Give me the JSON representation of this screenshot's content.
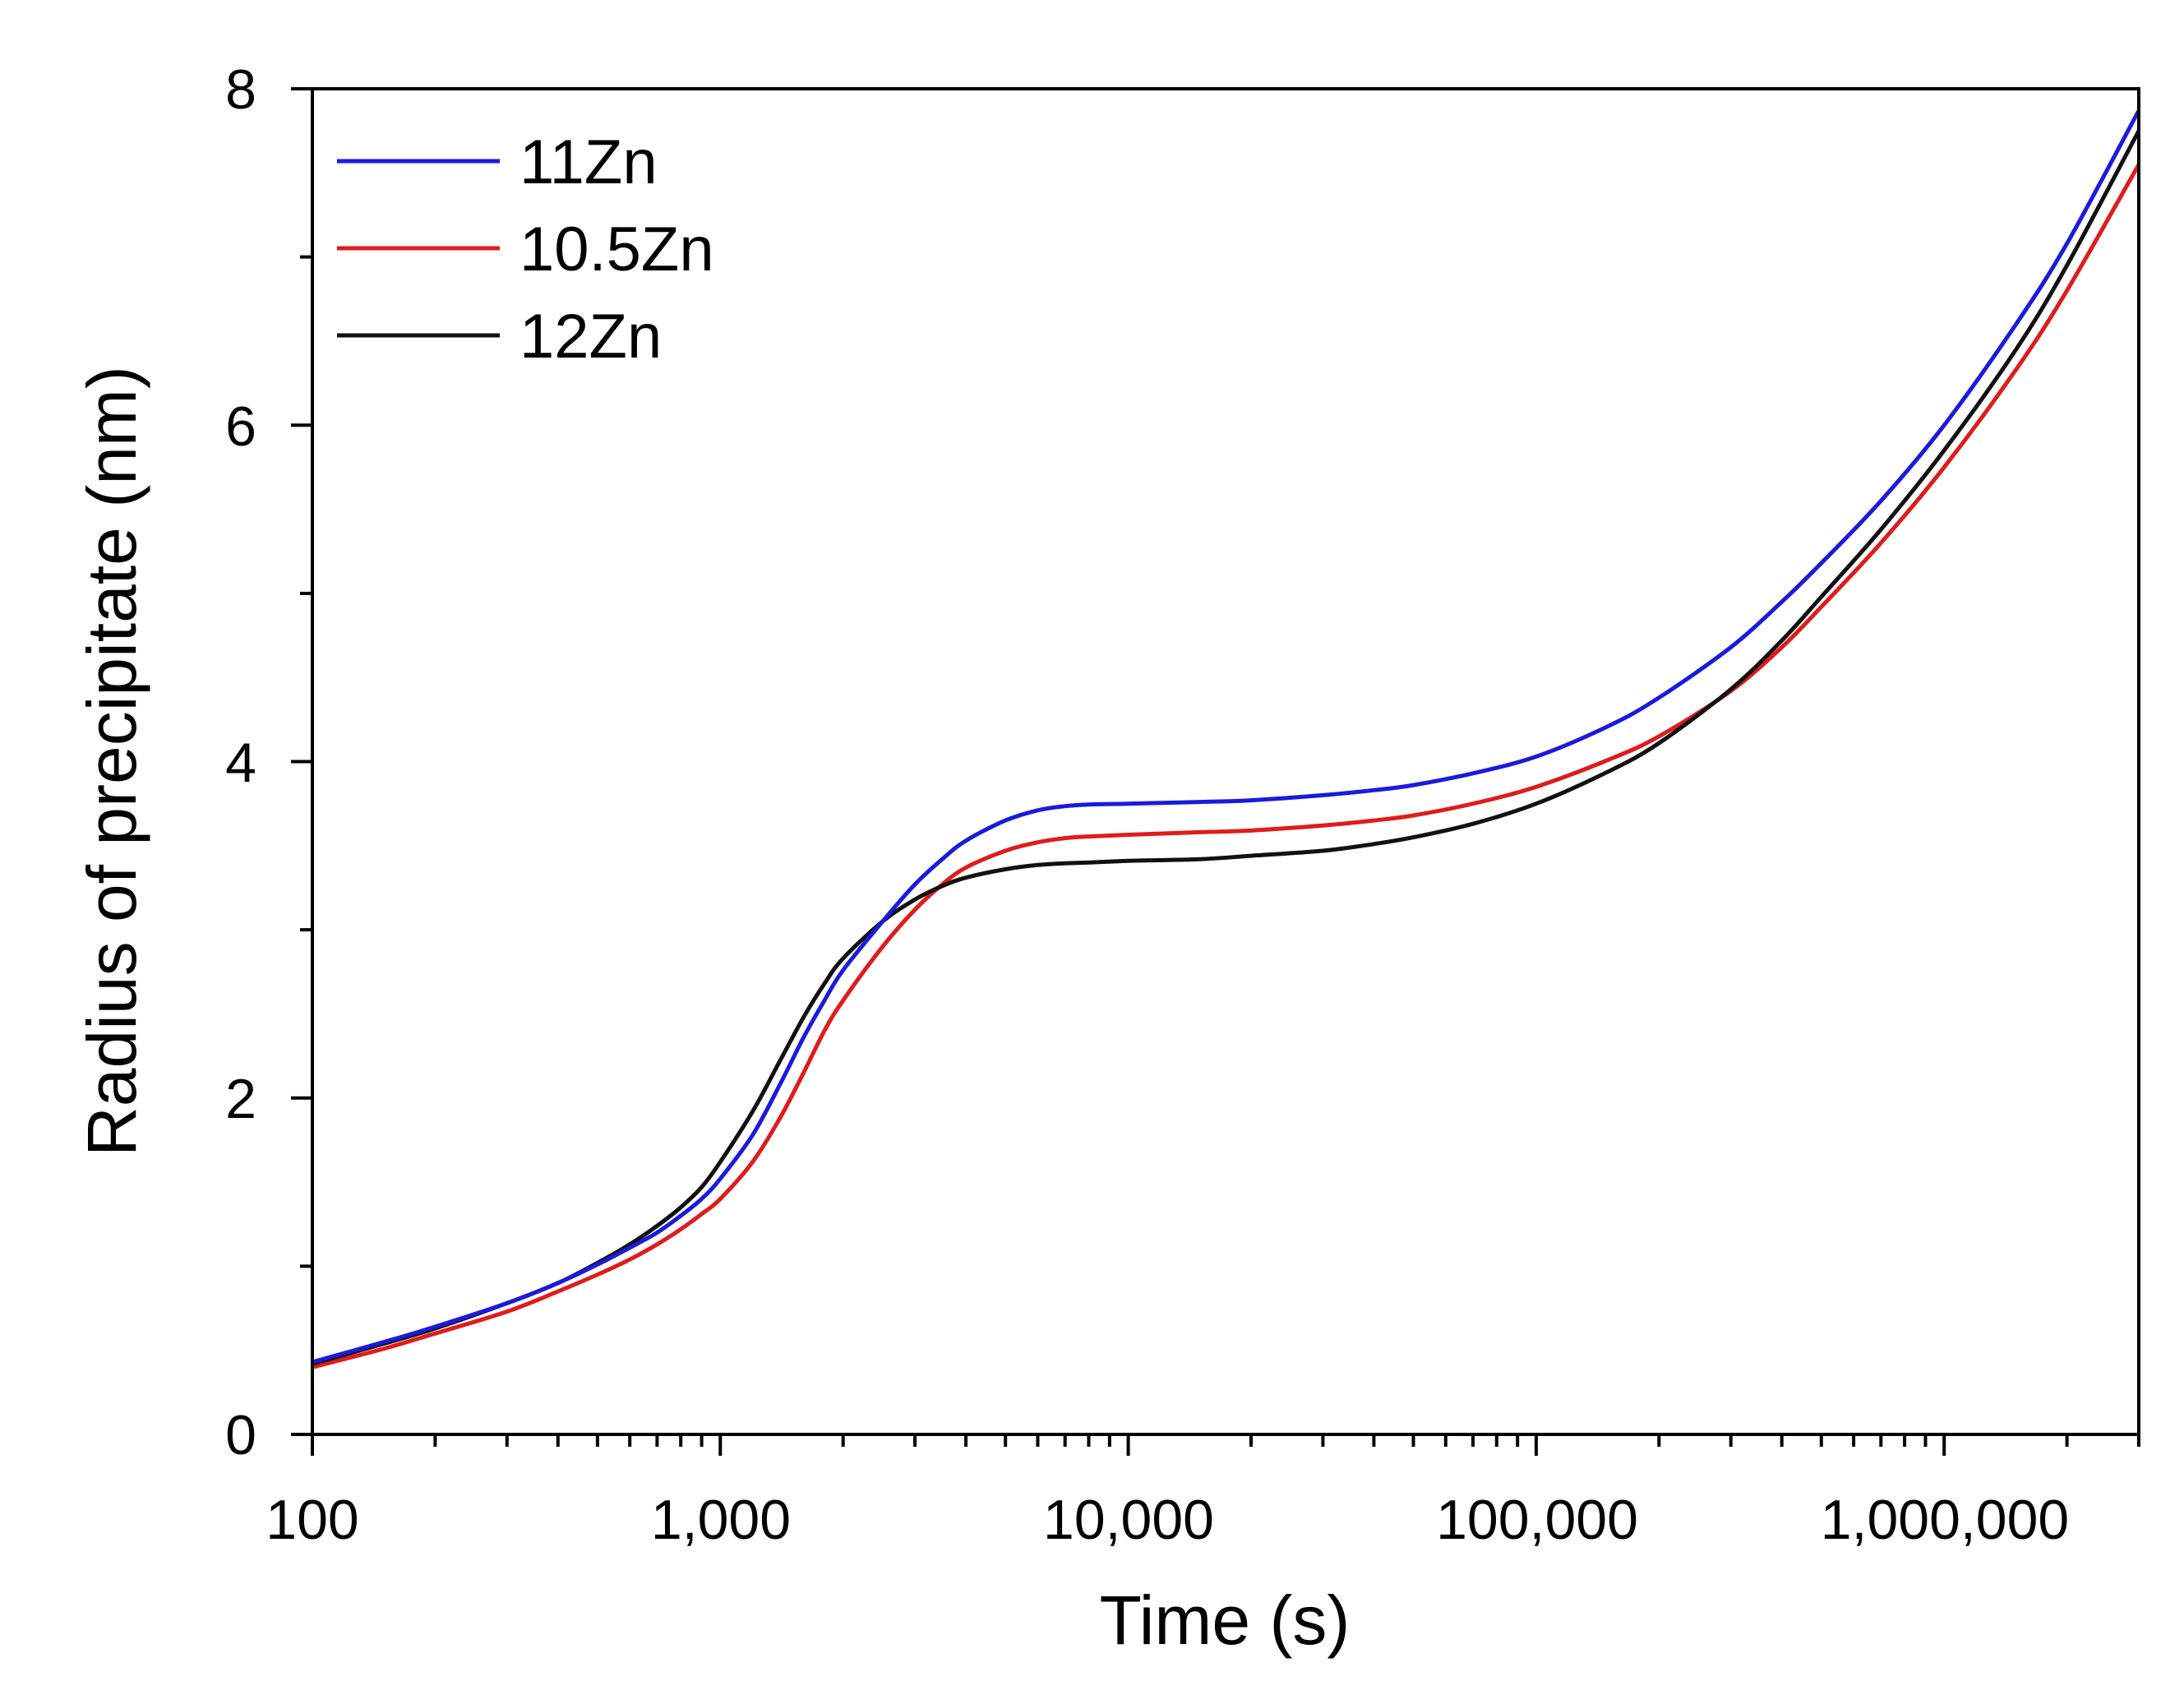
{
  "chart_data": {
    "type": "line",
    "xscale": "log",
    "xlabel": "Time (s)",
    "ylabel": "Radius of precipitate (nm)",
    "xlim": [
      100,
      3000000
    ],
    "ylim": [
      0,
      8
    ],
    "x_ticks": [
      {
        "value": 100,
        "label": "100"
      },
      {
        "value": 1000,
        "label": "1,000"
      },
      {
        "value": 10000,
        "label": "10,000"
      },
      {
        "value": 100000,
        "label": "100,000"
      },
      {
        "value": 1000000,
        "label": "1,000,000"
      }
    ],
    "y_ticks": [
      {
        "value": 0,
        "label": "0"
      },
      {
        "value": 2,
        "label": "2"
      },
      {
        "value": 4,
        "label": "4"
      },
      {
        "value": 6,
        "label": "6"
      },
      {
        "value": 8,
        "label": "8"
      }
    ],
    "legend_position": "top-left",
    "series": [
      {
        "name": "11Zn",
        "color": "#1a1adf",
        "points": [
          [
            100,
            0.43
          ],
          [
            150,
            0.55
          ],
          [
            200,
            0.64
          ],
          [
            300,
            0.78
          ],
          [
            400,
            0.9
          ],
          [
            500,
            1.01
          ],
          [
            600,
            1.11
          ],
          [
            700,
            1.2
          ],
          [
            800,
            1.3
          ],
          [
            900,
            1.4
          ],
          [
            1000,
            1.52
          ],
          [
            1200,
            1.78
          ],
          [
            1400,
            2.08
          ],
          [
            1600,
            2.36
          ],
          [
            1800,
            2.58
          ],
          [
            2000,
            2.76
          ],
          [
            2500,
            3.05
          ],
          [
            3000,
            3.27
          ],
          [
            3500,
            3.42
          ],
          [
            4000,
            3.53
          ],
          [
            5000,
            3.65
          ],
          [
            6000,
            3.71
          ],
          [
            7000,
            3.735
          ],
          [
            8000,
            3.745
          ],
          [
            10000,
            3.75
          ],
          [
            15000,
            3.76
          ],
          [
            20000,
            3.77
          ],
          [
            30000,
            3.8
          ],
          [
            40000,
            3.83
          ],
          [
            50000,
            3.86
          ],
          [
            70000,
            3.93
          ],
          [
            100000,
            4.03
          ],
          [
            150000,
            4.21
          ],
          [
            200000,
            4.38
          ],
          [
            300000,
            4.68
          ],
          [
            400000,
            4.95
          ],
          [
            500000,
            5.18
          ],
          [
            700000,
            5.55
          ],
          [
            1000000,
            6.0
          ],
          [
            1500000,
            6.6
          ],
          [
            2000000,
            7.08
          ],
          [
            3000000,
            7.87
          ]
        ]
      },
      {
        "name": "10.5Zn",
        "color": "#e01b1b",
        "points": [
          [
            100,
            0.4
          ],
          [
            150,
            0.51
          ],
          [
            200,
            0.6
          ],
          [
            300,
            0.73
          ],
          [
            400,
            0.85
          ],
          [
            500,
            0.95
          ],
          [
            600,
            1.04
          ],
          [
            700,
            1.13
          ],
          [
            800,
            1.22
          ],
          [
            900,
            1.31
          ],
          [
            1000,
            1.4
          ],
          [
            1200,
            1.62
          ],
          [
            1400,
            1.88
          ],
          [
            1600,
            2.15
          ],
          [
            1800,
            2.4
          ],
          [
            2000,
            2.58
          ],
          [
            2500,
            2.9
          ],
          [
            3000,
            3.12
          ],
          [
            3500,
            3.27
          ],
          [
            4000,
            3.37
          ],
          [
            5000,
            3.47
          ],
          [
            6000,
            3.52
          ],
          [
            7000,
            3.545
          ],
          [
            8000,
            3.555
          ],
          [
            10000,
            3.565
          ],
          [
            15000,
            3.58
          ],
          [
            20000,
            3.59
          ],
          [
            30000,
            3.62
          ],
          [
            40000,
            3.65
          ],
          [
            50000,
            3.68
          ],
          [
            70000,
            3.75
          ],
          [
            100000,
            3.85
          ],
          [
            150000,
            4.01
          ],
          [
            200000,
            4.15
          ],
          [
            300000,
            4.42
          ],
          [
            400000,
            4.68
          ],
          [
            500000,
            4.92
          ],
          [
            700000,
            5.3
          ],
          [
            1000000,
            5.75
          ],
          [
            1500000,
            6.33
          ],
          [
            2000000,
            6.8
          ],
          [
            3000000,
            7.55
          ]
        ]
      },
      {
        "name": "12Zn",
        "color": "#111111",
        "points": [
          [
            100,
            0.42
          ],
          [
            150,
            0.54
          ],
          [
            200,
            0.63
          ],
          [
            300,
            0.78
          ],
          [
            400,
            0.9
          ],
          [
            500,
            1.02
          ],
          [
            600,
            1.13
          ],
          [
            700,
            1.24
          ],
          [
            800,
            1.35
          ],
          [
            900,
            1.47
          ],
          [
            1000,
            1.62
          ],
          [
            1200,
            1.92
          ],
          [
            1400,
            2.22
          ],
          [
            1600,
            2.48
          ],
          [
            1800,
            2.68
          ],
          [
            2000,
            2.83
          ],
          [
            2500,
            3.05
          ],
          [
            3000,
            3.18
          ],
          [
            3500,
            3.26
          ],
          [
            4000,
            3.31
          ],
          [
            5000,
            3.36
          ],
          [
            6000,
            3.385
          ],
          [
            7000,
            3.395
          ],
          [
            8000,
            3.4
          ],
          [
            10000,
            3.41
          ],
          [
            15000,
            3.42
          ],
          [
            20000,
            3.44
          ],
          [
            30000,
            3.47
          ],
          [
            40000,
            3.51
          ],
          [
            50000,
            3.55
          ],
          [
            70000,
            3.63
          ],
          [
            100000,
            3.75
          ],
          [
            150000,
            3.94
          ],
          [
            200000,
            4.11
          ],
          [
            300000,
            4.43
          ],
          [
            400000,
            4.72
          ],
          [
            500000,
            4.98
          ],
          [
            700000,
            5.38
          ],
          [
            1000000,
            5.85
          ],
          [
            1500000,
            6.45
          ],
          [
            2000000,
            6.95
          ],
          [
            3000000,
            7.75
          ]
        ]
      }
    ]
  }
}
